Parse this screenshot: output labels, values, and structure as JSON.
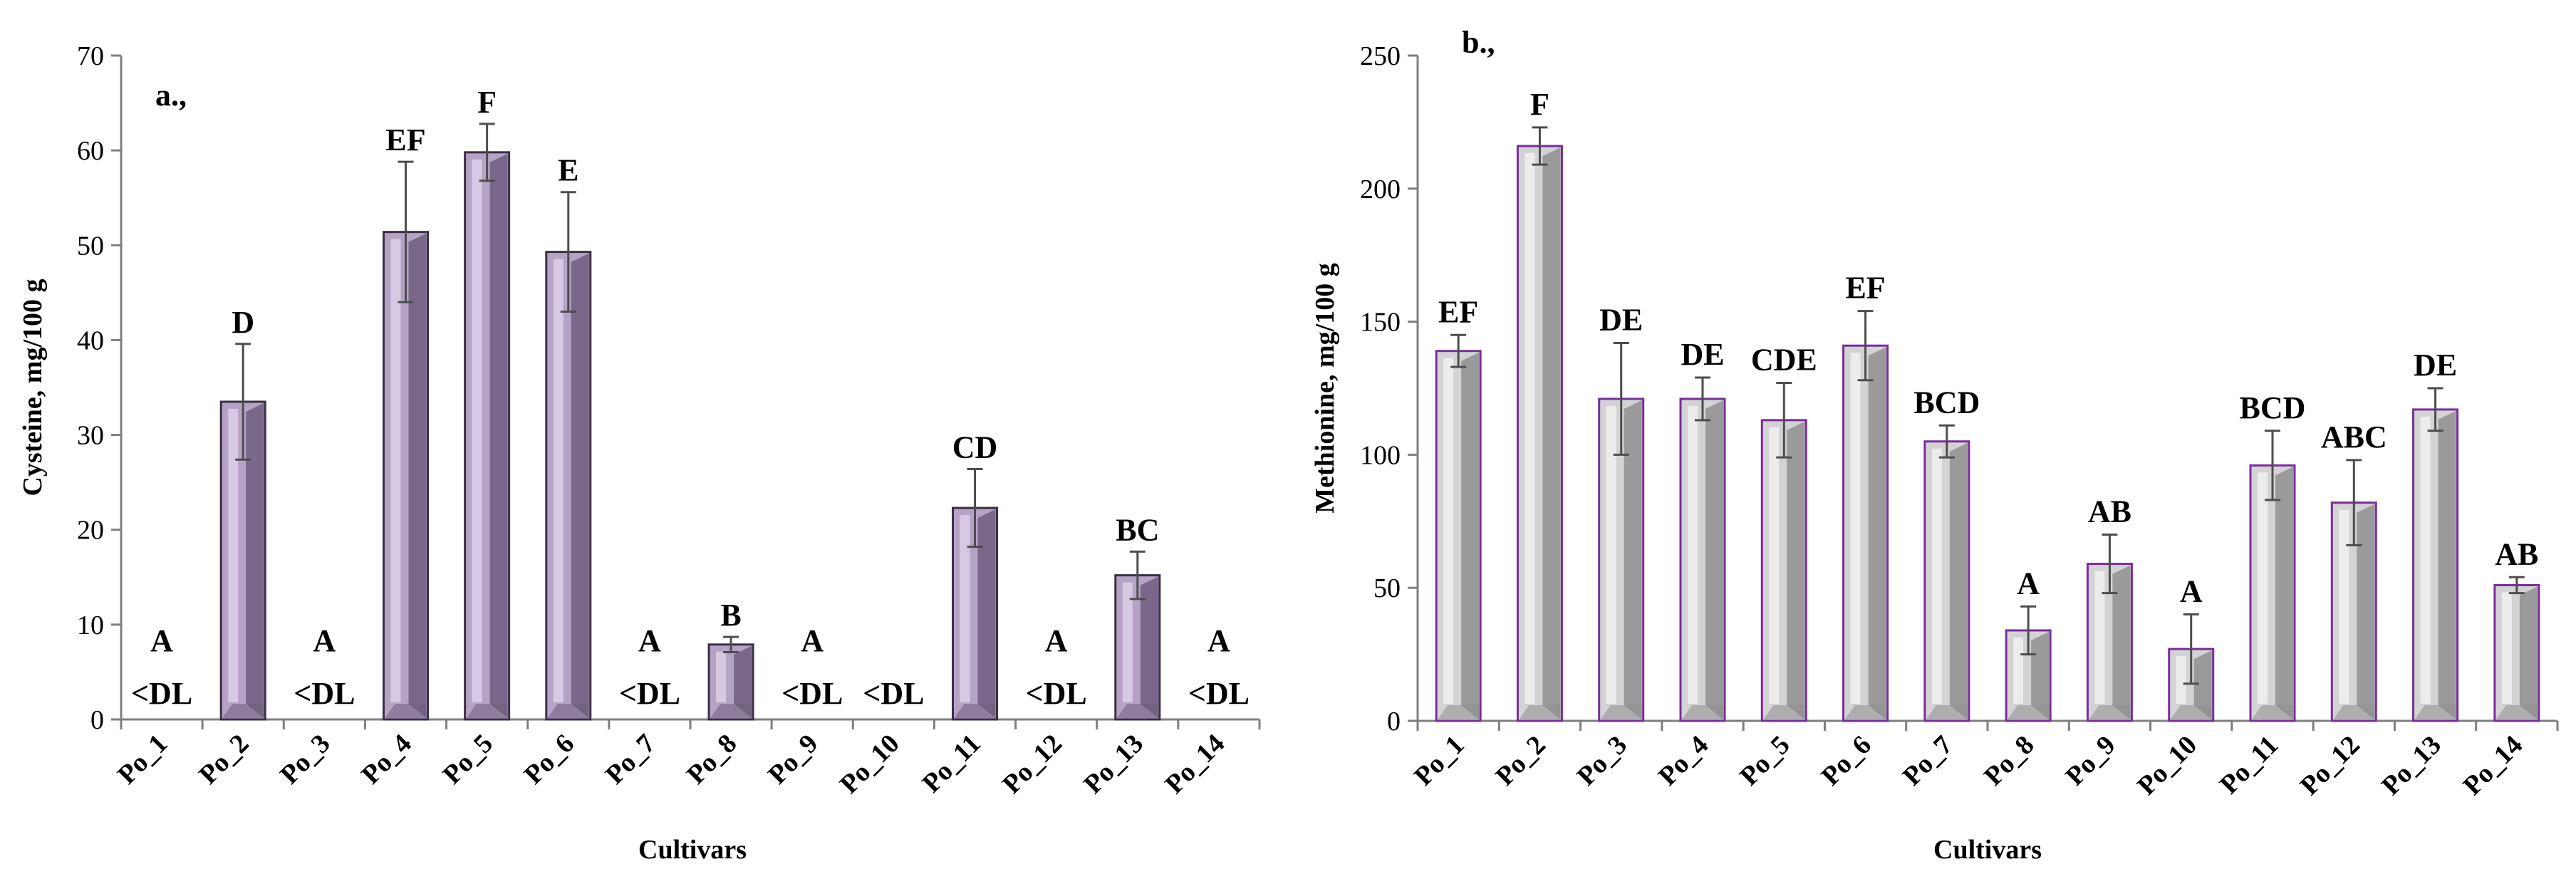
{
  "chart_data": [
    {
      "type": "bar",
      "panel_label": "a.,",
      "xlabel": "Cultivars",
      "ylabel": "Cysteine, mg/100 g",
      "ylim": [
        0,
        70
      ],
      "yticks": [
        0,
        10,
        20,
        30,
        40,
        50,
        60,
        70
      ],
      "categories": [
        "Po_1",
        "Po_2",
        "Po_3",
        "Po_4",
        "Po_5",
        "Po_6",
        "Po_7",
        "Po_8",
        "Po_9",
        "Po_10",
        "Po_11",
        "Po_12",
        "Po_13",
        "Po_14"
      ],
      "values": [
        0,
        33.5,
        0,
        51.4,
        59.8,
        49.3,
        0,
        7.9,
        0,
        0,
        22.3,
        0,
        15.2,
        0
      ],
      "errors": [
        0,
        6.1,
        0,
        7.4,
        3.0,
        6.3,
        0,
        0.8,
        0,
        0,
        4.1,
        0,
        2.5,
        0
      ],
      "significance": [
        "A",
        "D",
        "A",
        "EF",
        "F",
        "E",
        "A",
        "B",
        "A",
        "",
        "CD",
        "A",
        "BC",
        "A"
      ],
      "below_detection": [
        true,
        false,
        true,
        false,
        false,
        false,
        true,
        false,
        true,
        true,
        false,
        true,
        false,
        true
      ],
      "dl_label": "<DL",
      "colors": {
        "bar_fill": "#b5a3c6",
        "bar_dark": "#6e5e7e",
        "bar_light": "#d9cde6",
        "bar_edge": "#3a2f45"
      }
    },
    {
      "type": "bar",
      "panel_label": "b.,",
      "xlabel": "Cultivars",
      "ylabel": "Methionine, mg/100 g",
      "ylim": [
        0,
        250
      ],
      "yticks": [
        0,
        50,
        100,
        150,
        200,
        250
      ],
      "categories": [
        "Po_1",
        "Po_2",
        "Po_3",
        "Po_4",
        "Po_5",
        "Po_6",
        "Po_7",
        "Po_8",
        "Po_9",
        "Po_10",
        "Po_11",
        "Po_12",
        "Po_13",
        "Po_14"
      ],
      "values": [
        139,
        216,
        121,
        121,
        113,
        141,
        105,
        34,
        59,
        27,
        96,
        82,
        117,
        51
      ],
      "errors": [
        6,
        7,
        21,
        8,
        14,
        13,
        6,
        9,
        11,
        13,
        13,
        16,
        8,
        3
      ],
      "significance": [
        "EF",
        "F",
        "DE",
        "DE",
        "CDE",
        "EF",
        "BCD",
        "A",
        "AB",
        "A",
        "BCD",
        "ABC",
        "DE",
        "AB"
      ],
      "colors": {
        "bar_fill": "#d3d3d3",
        "bar_dark": "#8f8f8f",
        "bar_light": "#eeeeee",
        "bar_edge": "#7a2d9c"
      }
    }
  ]
}
